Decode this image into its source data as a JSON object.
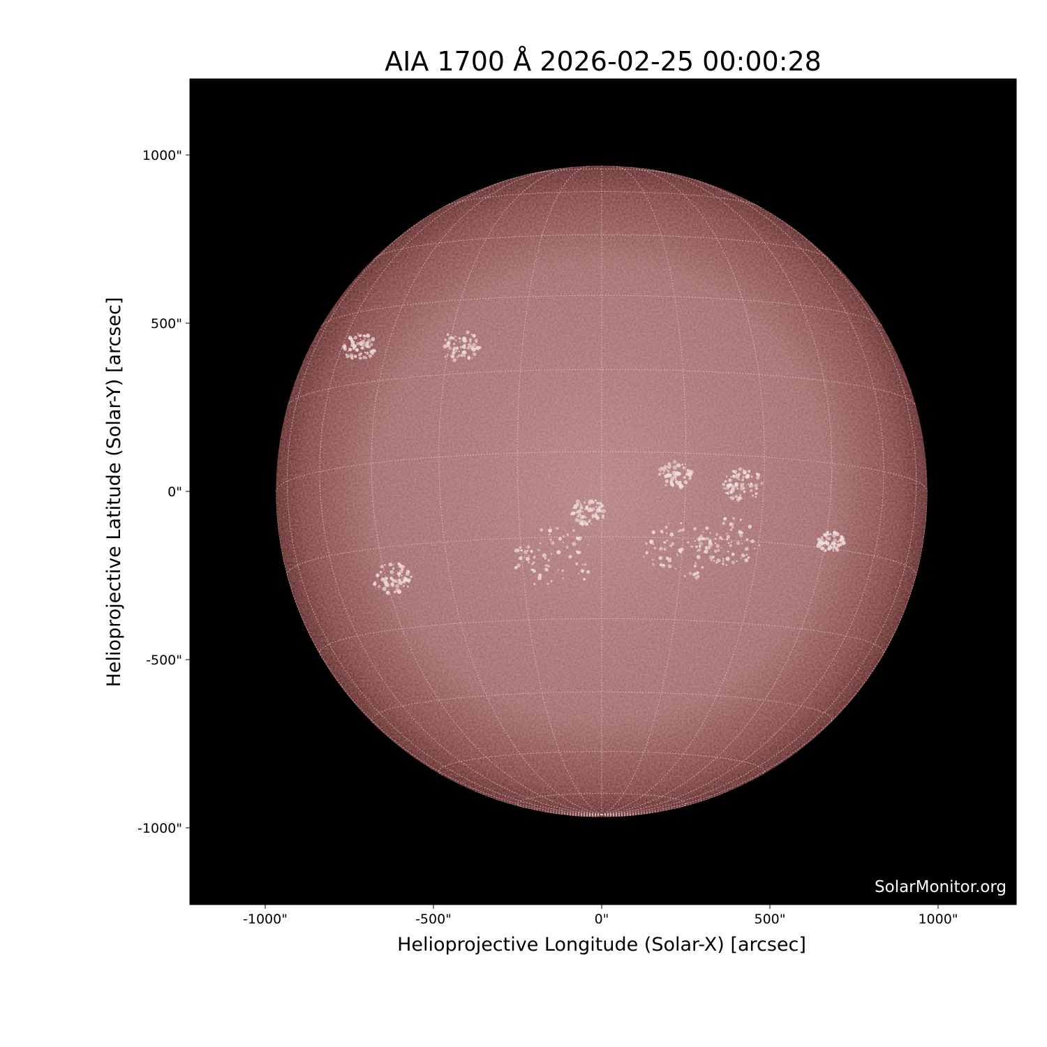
{
  "title": "AIA 1700 Å 2026-02-25 00:00:28",
  "xaxis": {
    "label": "Helioprojective Longitude (Solar-X) [arcsec]",
    "ticks": [
      "-1000\"",
      "-500\"",
      "0\"",
      "500\"",
      "1000\""
    ],
    "tick_values": [
      -1000,
      -500,
      0,
      500,
      1000
    ],
    "range": [
      -1230,
      1230
    ]
  },
  "yaxis": {
    "label": "Helioprojective Latitude (Solar-Y) [arcsec]",
    "ticks": [
      "1000\"",
      "500\"",
      "0\"",
      "-500\"",
      "-1000\""
    ],
    "tick_values": [
      1000,
      500,
      0,
      -500,
      -1000
    ],
    "range": [
      -1230,
      1230
    ]
  },
  "solar_radius_arcsec": 968,
  "grid_spacing_deg": 15,
  "watermark": "SolarMonitor.org",
  "colors": {
    "background": "#000000",
    "disk_center": "#b07878",
    "disk_limb": "#5a2020",
    "grid": "#e8c8c8",
    "plage": "#f2dede"
  }
}
